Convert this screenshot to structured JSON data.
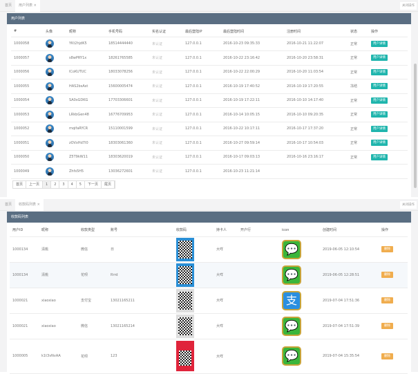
{
  "top": {
    "tabs": {
      "home": "首页",
      "active": "用户列表 ×"
    },
    "close_ops": "关闭操作",
    "panel_title": "用户列表",
    "columns": [
      "#",
      "头像",
      "昵称",
      "手机号码",
      "实名认证",
      "最后登陆IP",
      "最后登陆时间",
      "注册时间",
      "状态",
      "操作"
    ],
    "rows": [
      {
        "id": "1000058",
        "nick": "YKt2hjdK5",
        "phone": "18514444440",
        "auth": "未认证",
        "ip": "127.0.0.1",
        "last": "2016-10-23 09:35:33",
        "reg": "2016-10-21 11:22:07",
        "status": "正常",
        "action": "用户详情"
      },
      {
        "id": "1000057",
        "nick": "s8wPRY1x",
        "phone": "18261765585",
        "auth": "未认证",
        "ip": "127.0.0.1",
        "last": "2016-10-22 23:16:42",
        "reg": "2016-10-20 23:58:31",
        "status": "正常",
        "action": "用户详情"
      },
      {
        "id": "1000056",
        "nick": "lCoKUTUC",
        "phone": "18033078256",
        "auth": "未认证",
        "ip": "127.0.0.1",
        "last": "2016-10-22 22:00:29",
        "reg": "2016-10-20 11:03:54",
        "status": "正常",
        "action": "用户详情"
      },
      {
        "id": "1000055",
        "nick": "HAS2bsAst",
        "phone": "15600005474",
        "auth": "未认证",
        "ip": "127.0.0.1",
        "last": "2016-10-19 17:40:52",
        "reg": "2016-10-19 17:20:55",
        "status": "冻结",
        "action": "用户详情"
      },
      {
        "id": "1000054",
        "nick": "SA0sGDKG",
        "phone": "17703306601",
        "auth": "未认证",
        "ip": "127.0.0.1",
        "last": "2016-10-19 17:22:11",
        "reg": "2016-10-10 14:17:40",
        "status": "正常",
        "action": "用户详情"
      },
      {
        "id": "1000053",
        "nick": "LRkbGen48",
        "phone": "16776709953",
        "auth": "未认证",
        "ip": "127.0.0.1",
        "last": "2016-10-14 10:05:15",
        "reg": "2016-10-10 09:20:35",
        "status": "正常",
        "action": "用户详情"
      },
      {
        "id": "1000052",
        "nick": "mqifaRYCR",
        "phone": "15110001599",
        "auth": "未认证",
        "ip": "127.0.0.1",
        "last": "2016-10-22 10:17:11",
        "reg": "2016-10-17 17:37:20",
        "status": "正常",
        "action": "用户详情"
      },
      {
        "id": "1000051",
        "nick": "zOVxHd7I0",
        "phone": "18303061360",
        "auth": "未认证",
        "ip": "127.0.0.1",
        "last": "2016-10-27 09:59:14",
        "reg": "2016-10-17 10:54:03",
        "status": "正常",
        "action": "用户详情"
      },
      {
        "id": "1000050",
        "nick": "Z5T9kW11",
        "phone": "18303620019",
        "auth": "未认证",
        "ip": "127.0.0.1",
        "last": "2016-10-17 09:03:13",
        "reg": "2016-10-16 23:16:17",
        "status": "正常",
        "action": "用户详情"
      },
      {
        "id": "1000049",
        "nick": "Zhfs5H5",
        "phone": "13036272601",
        "auth": "未认证",
        "ip": "127.0.0.1",
        "last": "2016-10-23 11:21:14",
        "reg": "",
        "status": "",
        "action": ""
      }
    ],
    "pager": [
      "首页",
      "上一页",
      "1",
      "2",
      "3",
      "4",
      "5",
      "下一页",
      "尾页"
    ]
  },
  "bottom": {
    "tabs": {
      "home": "首页",
      "active": "收款码列表 ×"
    },
    "close_ops": "关闭操作",
    "panel_title": "收款码列表",
    "columns": [
      "用户ID",
      "昵称",
      "收款类型",
      "账号",
      "收款码",
      "持卡人",
      "开户行",
      "icon",
      "创建时间",
      "操作"
    ],
    "rows": [
      {
        "id": "1000134",
        "nick": "清桃",
        "type": "微信",
        "acct": "日",
        "qr": "blue",
        "holder": "大咩",
        "bank": "",
        "icon": "wechat-icon",
        "time": "2019-06-05 12:10:54",
        "action": "删除"
      },
      {
        "id": "1000134",
        "nick": "清桃",
        "type": "花呗",
        "acct": "Rrrd",
        "qr": "blue",
        "holder": "大咩",
        "bank": "",
        "icon": "wechat-icon",
        "time": "2019-06-05 12:28:51",
        "action": "删除"
      },
      {
        "id": "1000021",
        "nick": "xiaoxiao",
        "type": "支付宝",
        "acct": "13021165211",
        "qr": "plain",
        "holder": "大咩",
        "bank": "",
        "icon": "alipay-icon",
        "time": "2019-07-04 17:51:36",
        "action": "删除"
      },
      {
        "id": "1000021",
        "nick": "xiaoxiao",
        "type": "微信",
        "acct": "13021165214",
        "qr": "plain",
        "holder": "大咩",
        "bank": "",
        "icon": "wechat-icon",
        "time": "2019-07-04 17:51:39",
        "action": "删除"
      },
      {
        "id": "1000005",
        "nick": "k1t3vNvAA",
        "type": "花呗",
        "acct": "123",
        "qr": "red",
        "holder": "大咩",
        "bank": "",
        "icon": "wechat-icon",
        "time": "2019-07-04 15:35:54",
        "action": "删除"
      }
    ]
  },
  "colors": {
    "panel_header": "#5a6e82",
    "detail_button": "#1fb5ad",
    "delete_button": "#f0ad4e",
    "wechat": "#3bb53b",
    "alipay": "#2a8fe0"
  }
}
